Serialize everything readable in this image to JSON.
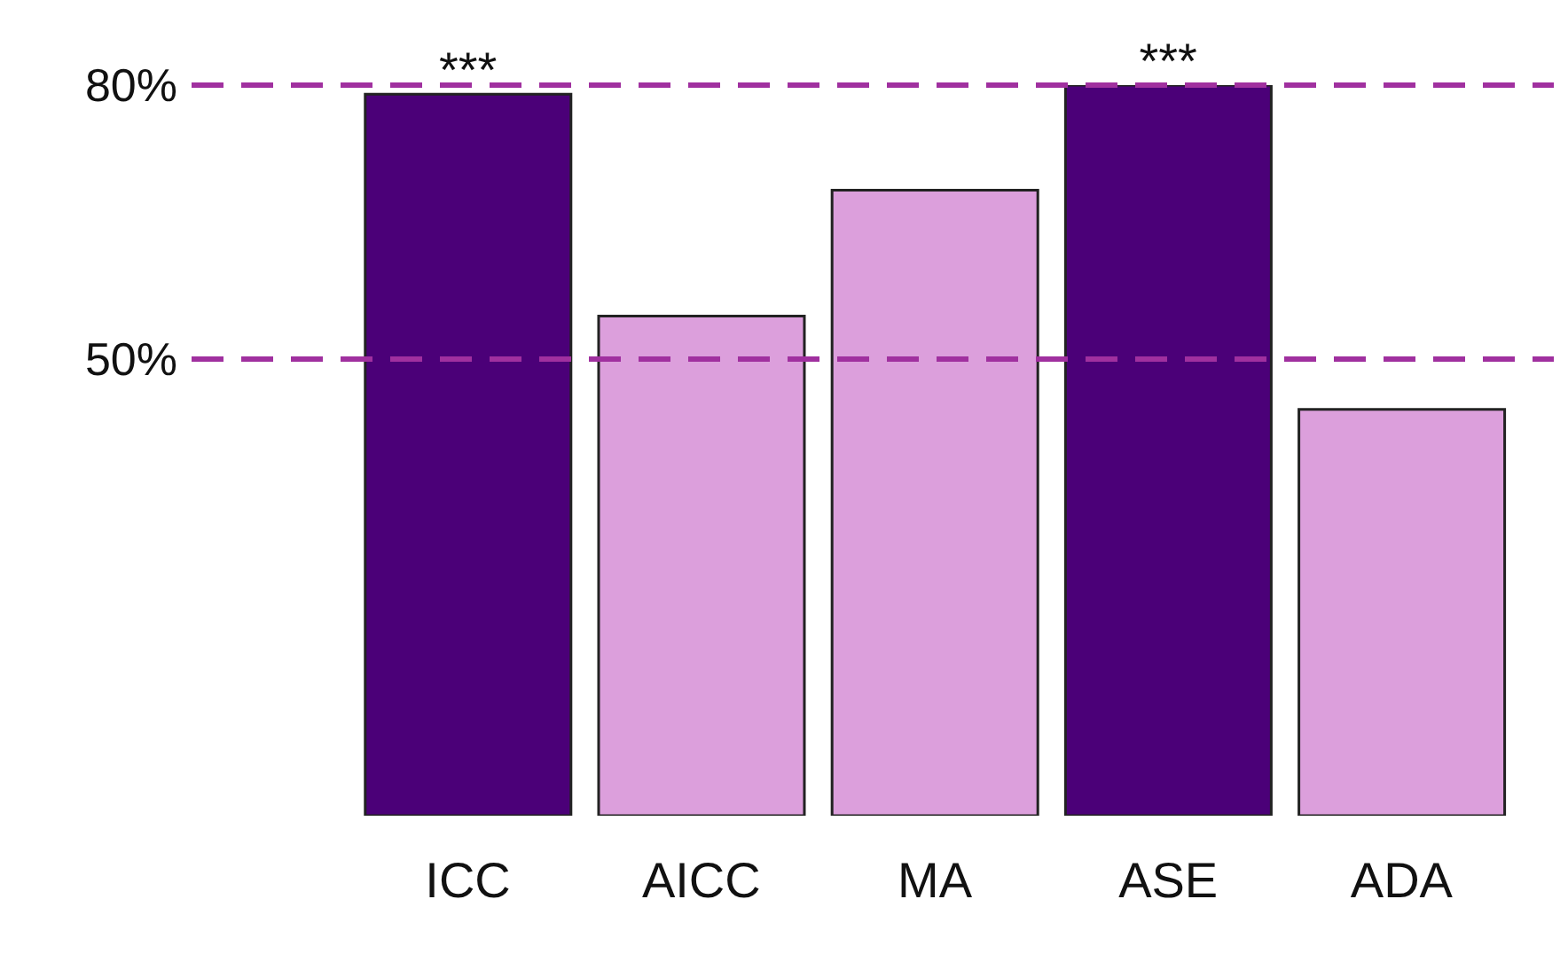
{
  "chart_data": {
    "type": "bar",
    "categories": [
      "ICC",
      "AICC",
      "MA",
      "ASE",
      "ADA"
    ],
    "values": [
      79,
      54.7,
      68.5,
      80,
      44.5
    ],
    "colors": [
      "#4b0078",
      "#dc9fdc",
      "#dc9fdc",
      "#4b0078",
      "#dc9fdc"
    ],
    "ylim": [
      0,
      80
    ],
    "yticks": [
      {
        "value": 50,
        "label": "50%"
      },
      {
        "value": 80,
        "label": "80%"
      }
    ],
    "ref_lines": [
      {
        "axis": "y",
        "value": 80,
        "color": "#a0309f",
        "line_style": "dashed"
      },
      {
        "axis": "y",
        "value": 50,
        "color": "#a0309f",
        "line_style": "dashed"
      }
    ],
    "annotations": [
      {
        "text": "***",
        "x": "ICC",
        "y": 79
      },
      {
        "text": "***",
        "x": "ASE",
        "y": 80
      }
    ]
  }
}
